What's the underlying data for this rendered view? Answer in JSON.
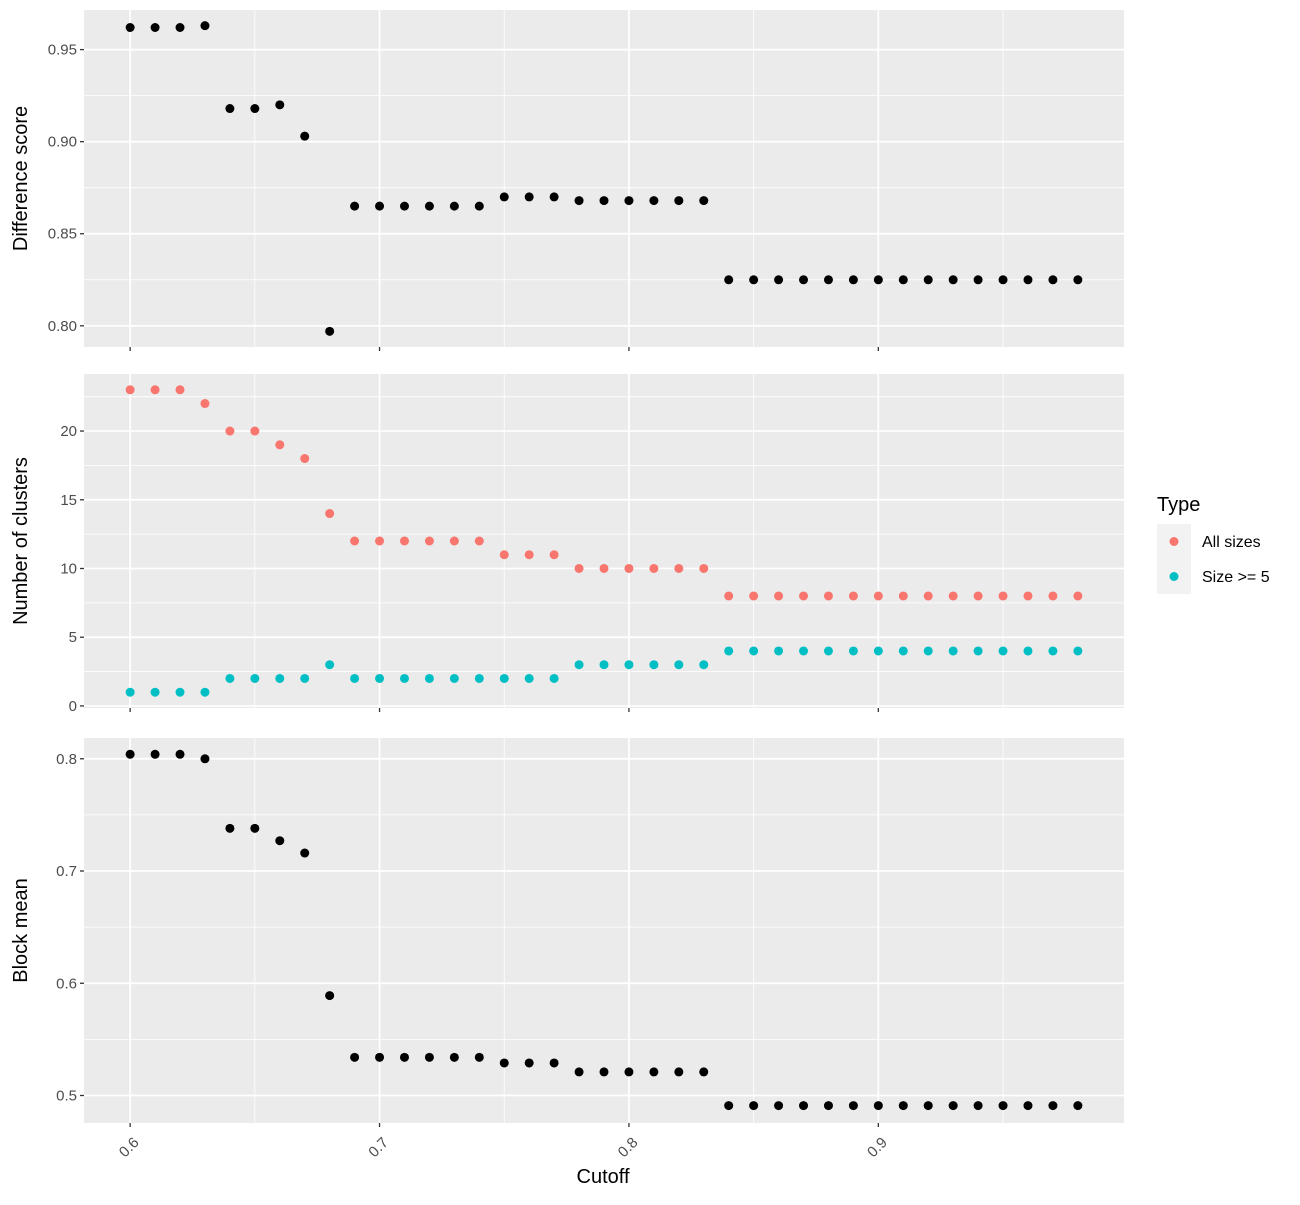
{
  "chart_data": {
    "type": "scatter",
    "layout": "faceted-vertical",
    "xlabel": "Cutoff",
    "x_ticks": [
      0.6,
      0.7,
      0.8,
      0.9
    ],
    "x_tick_labels": [
      "0.6",
      "0.7",
      "0.8",
      "0.9"
    ],
    "xlim": [
      0.5815,
      0.9985
    ],
    "x": [
      0.6,
      0.61,
      0.62,
      0.63,
      0.64,
      0.65,
      0.66,
      0.67,
      0.68,
      0.69,
      0.7,
      0.71,
      0.72,
      0.73,
      0.74,
      0.75,
      0.76,
      0.77,
      0.78,
      0.79,
      0.8,
      0.81,
      0.82,
      0.83,
      0.84,
      0.85,
      0.86,
      0.87,
      0.88,
      0.89,
      0.9,
      0.91,
      0.92,
      0.93,
      0.94,
      0.95,
      0.96,
      0.97,
      0.98
    ],
    "grid": true,
    "panel_background": "#ebebeb",
    "grid_color": "#ffffff",
    "panels": [
      {
        "ylabel": "Difference score",
        "ylim": [
          0.7885,
          0.9715
        ],
        "y_ticks": [
          0.8,
          0.85,
          0.9,
          0.95
        ],
        "y_tick_labels": [
          "0.80",
          "0.85",
          "0.90",
          "0.95"
        ],
        "series": [
          {
            "color": "#000000",
            "values": [
              0.962,
              0.962,
              0.962,
              0.963,
              0.918,
              0.918,
              0.92,
              0.903,
              0.797,
              0.865,
              0.865,
              0.865,
              0.865,
              0.865,
              0.865,
              0.87,
              0.87,
              0.87,
              0.868,
              0.868,
              0.868,
              0.868,
              0.868,
              0.868,
              0.825,
              0.825,
              0.825,
              0.825,
              0.825,
              0.825,
              0.825,
              0.825,
              0.825,
              0.825,
              0.825,
              0.825,
              0.825,
              0.825,
              0.825
            ]
          }
        ]
      },
      {
        "ylabel": "Number of clusters",
        "ylim": [
          -0.15,
          24.15
        ],
        "y_ticks": [
          0,
          5,
          10,
          15,
          20
        ],
        "y_tick_labels": [
          "0",
          "5",
          "10",
          "15",
          "20"
        ],
        "series": [
          {
            "name": "All sizes",
            "color": "#F8766D",
            "values": [
              23,
              23,
              23,
              22,
              20,
              20,
              19,
              18,
              14,
              12,
              12,
              12,
              12,
              12,
              12,
              11,
              11,
              11,
              10,
              10,
              10,
              10,
              10,
              10,
              8,
              8,
              8,
              8,
              8,
              8,
              8,
              8,
              8,
              8,
              8,
              8,
              8,
              8,
              8
            ]
          },
          {
            "name": "Size >= 5",
            "color": "#00BFC4",
            "values": [
              1,
              1,
              1,
              1,
              2,
              2,
              2,
              2,
              3,
              2,
              2,
              2,
              2,
              2,
              2,
              2,
              2,
              2,
              3,
              3,
              3,
              3,
              3,
              3,
              4,
              4,
              4,
              4,
              4,
              4,
              4,
              4,
              4,
              4,
              4,
              4,
              4,
              4,
              4
            ]
          }
        ]
      },
      {
        "ylabel": "Block mean",
        "ylim": [
          0.4755,
          0.8185
        ],
        "y_ticks": [
          0.5,
          0.6,
          0.7,
          0.8
        ],
        "y_tick_labels": [
          "0.5",
          "0.6",
          "0.7",
          "0.8"
        ],
        "series": [
          {
            "color": "#000000",
            "values": [
              0.804,
              0.804,
              0.804,
              0.8,
              0.738,
              0.738,
              0.727,
              0.716,
              0.589,
              0.534,
              0.534,
              0.534,
              0.534,
              0.534,
              0.534,
              0.529,
              0.529,
              0.529,
              0.521,
              0.521,
              0.521,
              0.521,
              0.521,
              0.521,
              0.491,
              0.491,
              0.491,
              0.491,
              0.491,
              0.491,
              0.491,
              0.491,
              0.491,
              0.491,
              0.491,
              0.491,
              0.491,
              0.491,
              0.491
            ]
          }
        ]
      }
    ],
    "legend": {
      "title": "Type",
      "position": "right",
      "entries": [
        {
          "label": "All sizes",
          "color": "#F8766D"
        },
        {
          "label": "Size >= 5",
          "color": "#00BFC4"
        }
      ]
    }
  }
}
